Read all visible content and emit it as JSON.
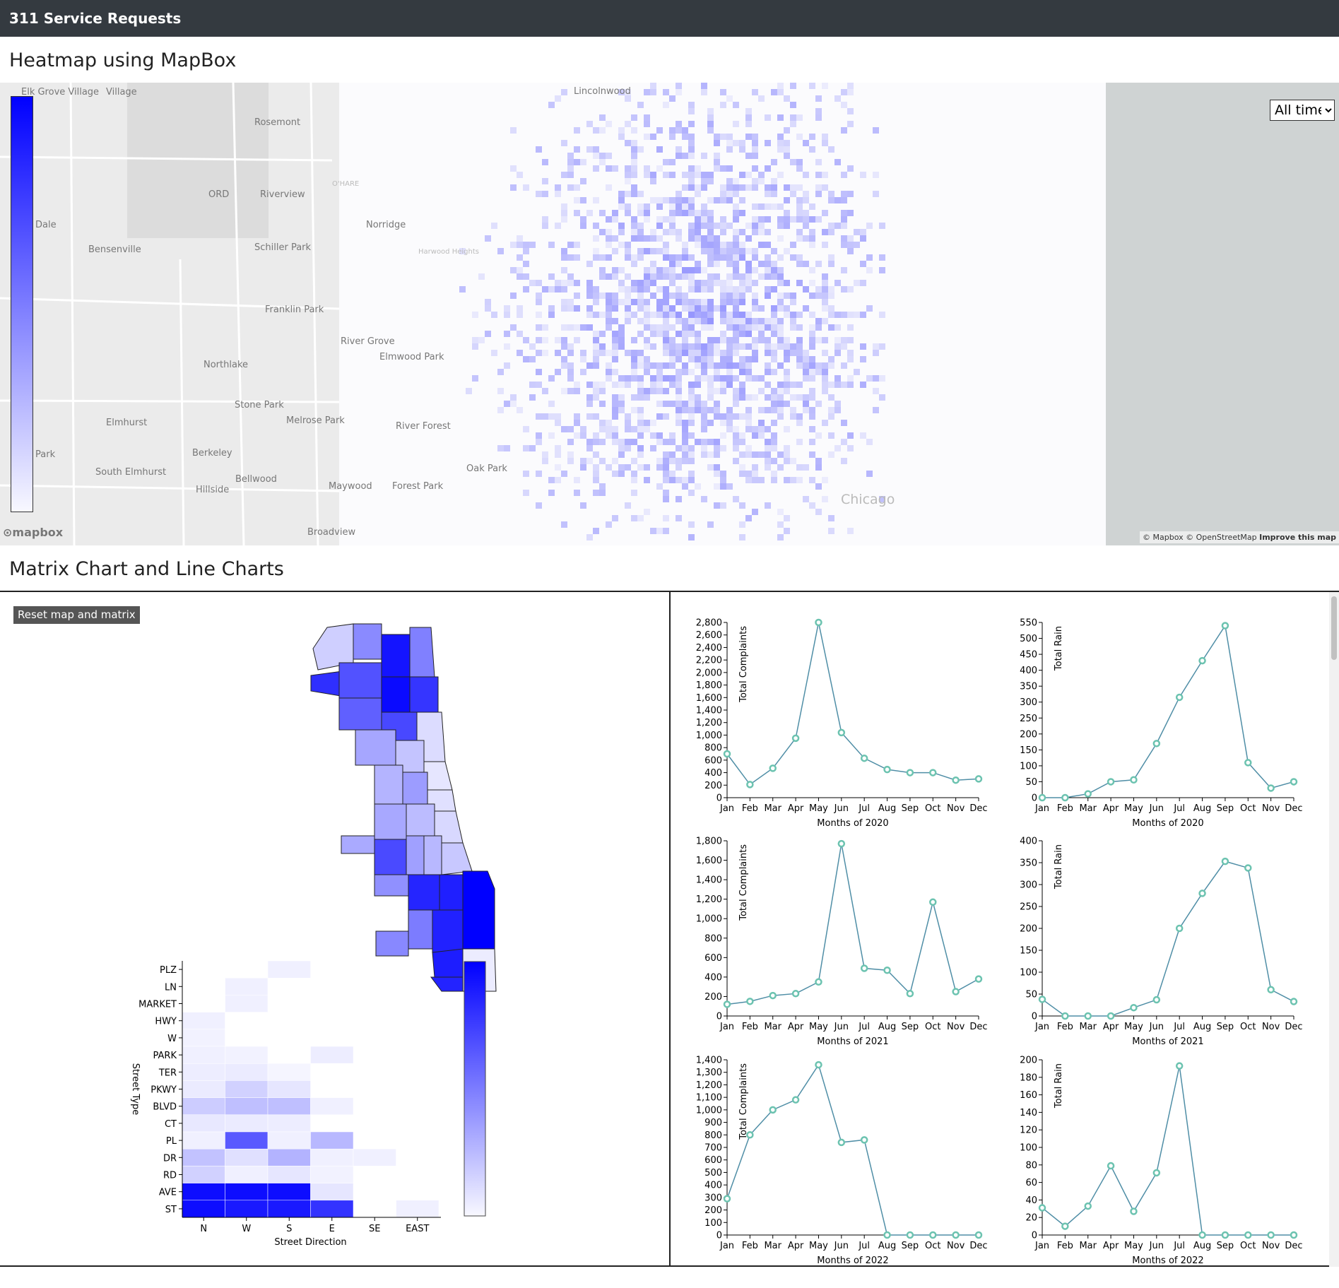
{
  "navbar": {
    "brand": "311 Service Requests"
  },
  "sections": {
    "heatmap_title": "Heatmap using MapBox",
    "matrix_title": "Matrix Chart and Line Charts"
  },
  "map": {
    "time_filter": {
      "selected": "All time"
    },
    "place_labels": [
      "Elk Grove Village",
      "Village",
      "Rosemont",
      "ORD",
      "Riverview",
      "Dale",
      "Bensenville",
      "Schiller Park",
      "Franklin Park",
      "Northlake",
      "Stone Park",
      "Melrose Park",
      "Elmhurst",
      "Berkeley",
      "Park",
      "South Elmhurst",
      "Hillside",
      "Bellwood",
      "Maywood",
      "Broadview",
      "Lincolnwood",
      "Harwood Heights",
      "Norridge",
      "River Grove",
      "Elmwood Park",
      "River Forest",
      "Oak Park",
      "Forest Park",
      "Chicago",
      "O'HARE"
    ],
    "logo": "mapbox",
    "attribution": "© Mapbox © OpenStreetMap",
    "improve_link": "Improve this map",
    "legend_colors": [
      "#0000ff",
      "#f8f8ff"
    ]
  },
  "controls": {
    "reset_label": "Reset map and matrix"
  },
  "matrix": {
    "x_label": "Street Direction",
    "y_label": "Street Type",
    "x_categories": [
      "N",
      "W",
      "S",
      "E",
      "SE",
      "EAST"
    ],
    "y_categories": [
      "PLZ",
      "LN",
      "MARKET",
      "HWY",
      "W",
      "PARK",
      "TER",
      "PKWY",
      "BLVD",
      "CT",
      "PL",
      "DR",
      "RD",
      "AVE",
      "ST"
    ],
    "intensity": [
      [
        0,
        0,
        0.06,
        0,
        0,
        0
      ],
      [
        0,
        0.06,
        0,
        0,
        0,
        0
      ],
      [
        0,
        0.06,
        0,
        0,
        0,
        0
      ],
      [
        0.06,
        0,
        0,
        0,
        0,
        0
      ],
      [
        0.05,
        0,
        0,
        0,
        0,
        0
      ],
      [
        0.06,
        0.05,
        0,
        0.07,
        0,
        0
      ],
      [
        0.07,
        0.08,
        0.04,
        0,
        0,
        0
      ],
      [
        0.08,
        0.18,
        0.1,
        0,
        0,
        0
      ],
      [
        0.2,
        0.25,
        0.25,
        0.06,
        0,
        0
      ],
      [
        0.09,
        0.08,
        0.07,
        0,
        0,
        0
      ],
      [
        0.06,
        0.65,
        0.06,
        0.28,
        0,
        0
      ],
      [
        0.24,
        0.12,
        0.3,
        0.06,
        0.06,
        0
      ],
      [
        0.18,
        0.06,
        0.1,
        0.05,
        0,
        0
      ],
      [
        0.95,
        0.95,
        0.95,
        0.1,
        0,
        0
      ],
      [
        0.95,
        0.9,
        0.9,
        0.8,
        0,
        0.06
      ]
    ],
    "colors": [
      "#ffffff",
      "#0000ff"
    ]
  },
  "line_charts": {
    "months": [
      "Jan",
      "Feb",
      "Mar",
      "Apr",
      "May",
      "Jun",
      "Jul",
      "Aug",
      "Sep",
      "Oct",
      "Nov",
      "Dec"
    ],
    "line_color": "#4f8ea6",
    "point_color": "#6cc3b0"
  },
  "chart_data": [
    {
      "type": "line",
      "title": "",
      "xlabel": "Months of 2020",
      "ylabel": "Total Complaints",
      "categories": [
        "Jan",
        "Feb",
        "Mar",
        "Apr",
        "May",
        "Jun",
        "Jul",
        "Aug",
        "Sep",
        "Oct",
        "Nov",
        "Dec"
      ],
      "values": [
        700,
        210,
        470,
        950,
        2800,
        1040,
        630,
        450,
        400,
        400,
        280,
        300
      ],
      "ylim": [
        0,
        2800
      ],
      "yticks": [
        0,
        200,
        400,
        600,
        800,
        1000,
        1200,
        1400,
        1600,
        1800,
        2000,
        2200,
        2400,
        2600,
        2800
      ]
    },
    {
      "type": "line",
      "title": "",
      "xlabel": "Months of 2020",
      "ylabel": "Total Rain",
      "categories": [
        "Jan",
        "Feb",
        "Mar",
        "Apr",
        "May",
        "Jun",
        "Jul",
        "Aug",
        "Sep",
        "Oct",
        "Nov",
        "Dec"
      ],
      "values": [
        0,
        0,
        12,
        50,
        56,
        170,
        315,
        430,
        540,
        110,
        30,
        50
      ],
      "ylim": [
        0,
        550
      ],
      "yticks": [
        0,
        50,
        100,
        150,
        200,
        250,
        300,
        350,
        400,
        450,
        500,
        550
      ]
    },
    {
      "type": "line",
      "title": "",
      "xlabel": "Months of 2021",
      "ylabel": "Total Complaints",
      "categories": [
        "Jan",
        "Feb",
        "Mar",
        "Apr",
        "May",
        "Jun",
        "Jul",
        "Aug",
        "Sep",
        "Oct",
        "Nov",
        "Dec"
      ],
      "values": [
        120,
        150,
        210,
        230,
        350,
        1770,
        490,
        470,
        230,
        1170,
        250,
        380
      ],
      "ylim": [
        0,
        1800
      ],
      "yticks": [
        0,
        200,
        400,
        600,
        800,
        1000,
        1200,
        1400,
        1600,
        1800
      ]
    },
    {
      "type": "line",
      "title": "",
      "xlabel": "Months of 2021",
      "ylabel": "Total Rain",
      "categories": [
        "Jan",
        "Feb",
        "Mar",
        "Apr",
        "May",
        "Jun",
        "Jul",
        "Aug",
        "Sep",
        "Oct",
        "Nov",
        "Dec"
      ],
      "values": [
        38,
        0,
        0,
        0,
        19,
        37,
        200,
        280,
        353,
        338,
        60,
        33
      ],
      "ylim": [
        0,
        400
      ],
      "yticks": [
        0,
        50,
        100,
        150,
        200,
        250,
        300,
        350,
        400
      ]
    },
    {
      "type": "line",
      "title": "",
      "xlabel": "Months of 2022",
      "ylabel": "Total Complaints",
      "categories": [
        "Jan",
        "Feb",
        "Mar",
        "Apr",
        "May",
        "Jun",
        "Jul",
        "Aug",
        "Sep",
        "Oct",
        "Nov",
        "Dec"
      ],
      "values": [
        290,
        800,
        1000,
        1080,
        1360,
        740,
        760,
        0,
        0,
        0,
        0,
        0
      ],
      "ylim": [
        0,
        1400
      ],
      "yticks": [
        0,
        100,
        200,
        300,
        400,
        500,
        600,
        700,
        800,
        900,
        1000,
        1100,
        1200,
        1300,
        1400
      ]
    },
    {
      "type": "line",
      "title": "",
      "xlabel": "Months of 2022",
      "ylabel": "Total Rain",
      "categories": [
        "Jan",
        "Feb",
        "Mar",
        "Apr",
        "May",
        "Jun",
        "Jul",
        "Aug",
        "Sep",
        "Oct",
        "Nov",
        "Dec"
      ],
      "values": [
        31,
        10,
        33,
        79,
        27,
        71,
        193,
        0,
        0,
        0,
        0,
        0
      ],
      "ylim": [
        0,
        200
      ],
      "yticks": [
        0,
        20,
        40,
        60,
        80,
        100,
        120,
        140,
        160,
        180,
        200
      ]
    }
  ]
}
